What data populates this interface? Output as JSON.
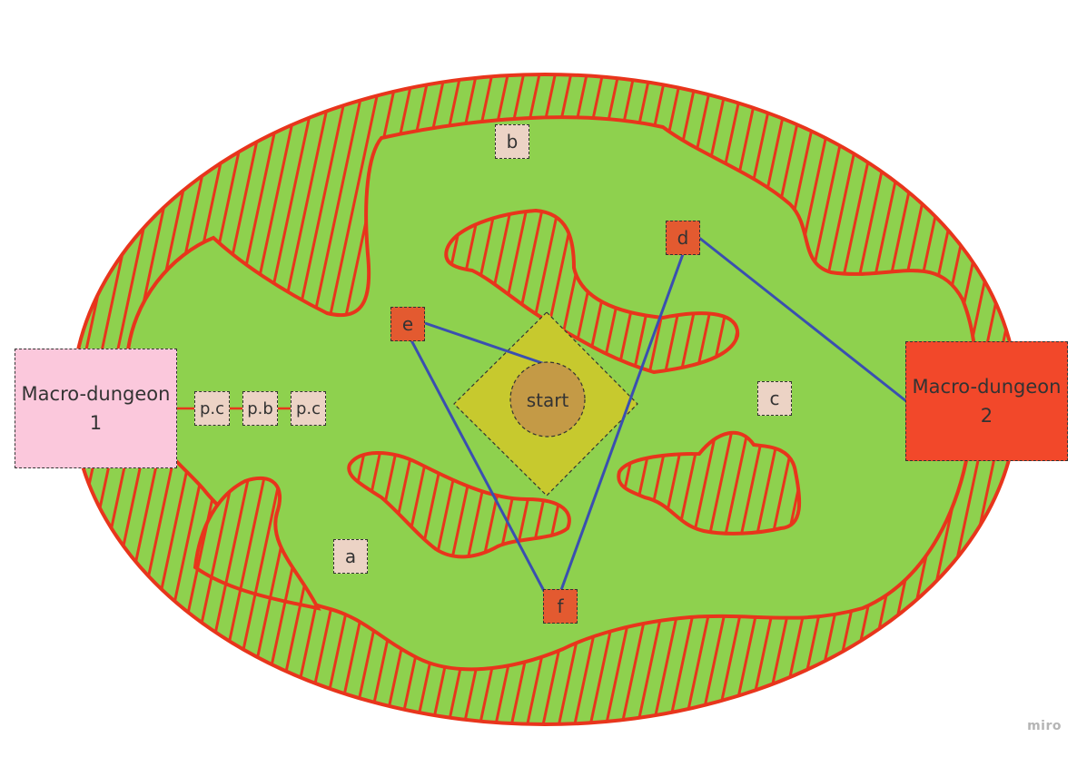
{
  "colors": {
    "land": "#8ed14e",
    "hatch": "#e8351c",
    "link": "#3a4fb0",
    "start_zone": "#c7c92e",
    "start_node": "#c49a46",
    "key_room": "#e35a30",
    "room": "#ecd3c5",
    "macro1": "#fbc8dc",
    "macro2": "#f2482a"
  },
  "nodes": {
    "macro1": "Macro-dungeon\n1",
    "macro2": "Macro-dungeon\n2",
    "start": "start",
    "a": "a",
    "b": "b",
    "c": "c",
    "d": "d",
    "e": "e",
    "f": "f",
    "pc1": "p.c",
    "pb": "p.b",
    "pc2": "p.c"
  },
  "watermark": "miro"
}
